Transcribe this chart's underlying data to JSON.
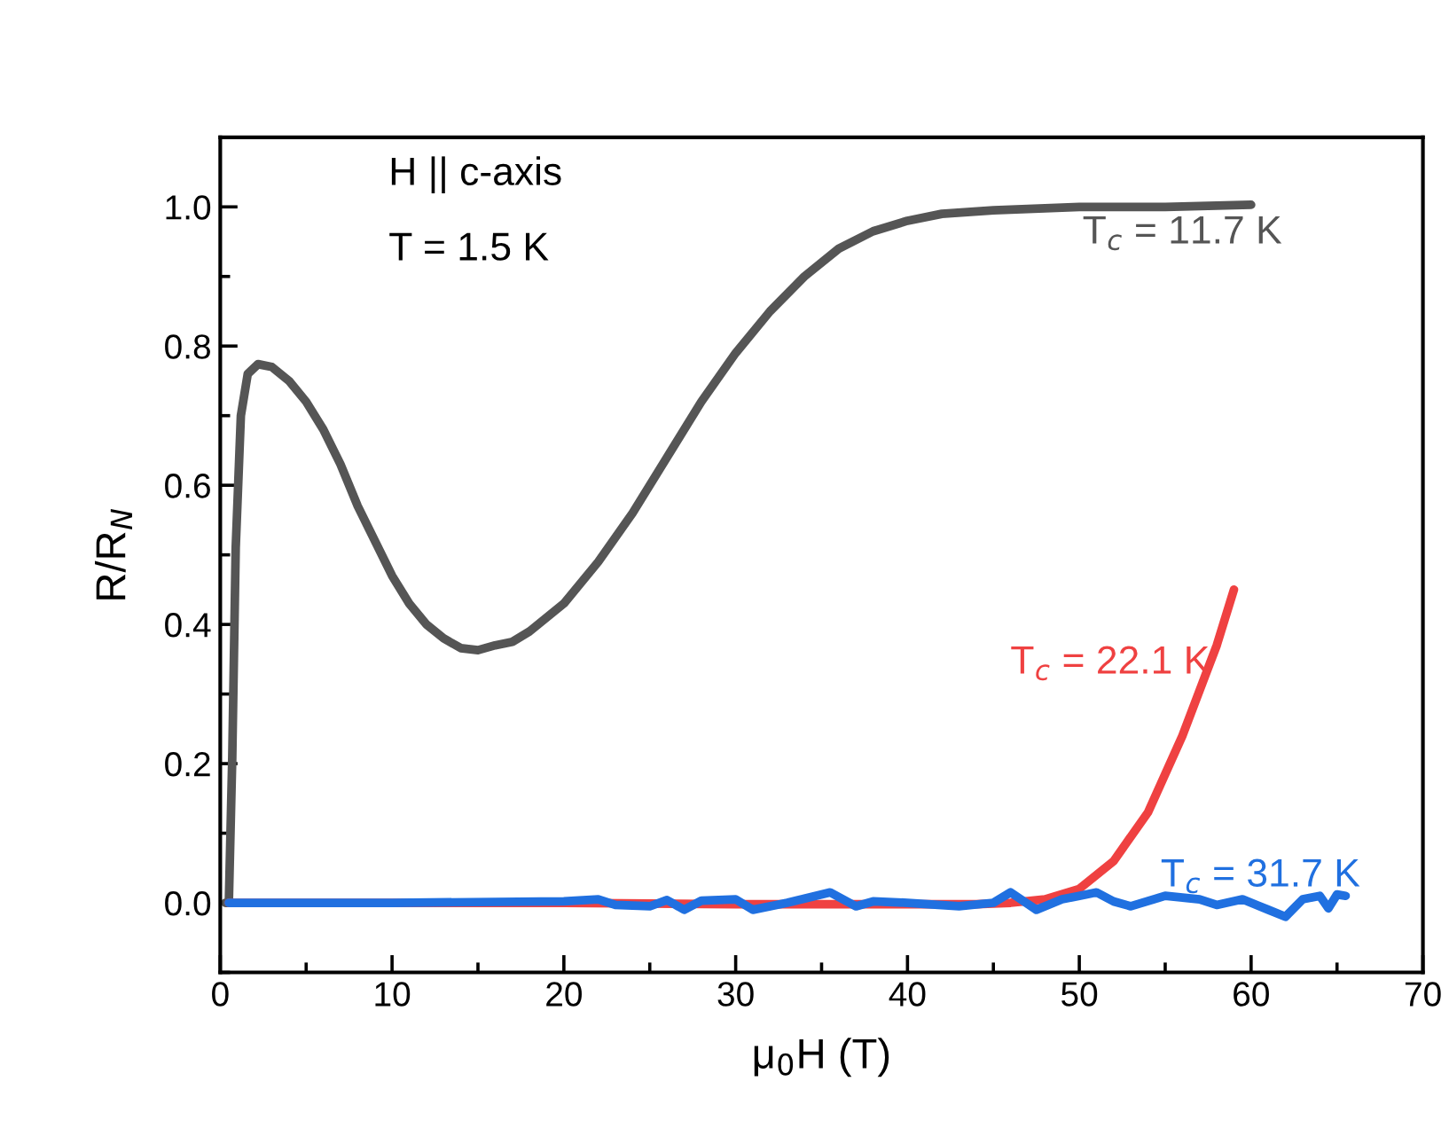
{
  "chart_data": {
    "type": "line",
    "xlabel": "μ$_{0}$H (T)",
    "ylabel": "R/R$_{N}$",
    "annotations": [
      "H || c-axis",
      "T = 1.5 K"
    ],
    "xlim": [
      0,
      70
    ],
    "xticks": [
      0,
      10,
      20,
      30,
      40,
      50,
      60,
      70
    ],
    "ylim": [
      -0.1,
      1.1
    ],
    "yticks": [
      {
        "value": 0,
        "label": "0.0"
      },
      0.2,
      0.4,
      0.6,
      0.8,
      {
        "value": 1,
        "label": "1.0"
      }
    ],
    "grid": false,
    "legend": false,
    "marker": "none",
    "line_style": "solid",
    "series": [
      {
        "name": "T$_{c}$ = 11.7 K",
        "color": "#555555",
        "x": [
          0.3,
          0.5,
          0.7,
          0.9,
          1.2,
          1.6,
          2.2,
          3,
          4,
          5,
          6,
          7,
          8,
          9,
          10,
          11,
          12,
          13,
          14,
          15,
          16,
          17,
          18,
          20,
          22,
          24,
          26,
          28,
          30,
          32,
          34,
          36,
          38,
          40,
          42,
          45,
          50,
          55,
          60
        ],
        "values": [
          0,
          0,
          0.21,
          0.51,
          0.7,
          0.76,
          0.774,
          0.77,
          0.75,
          0.72,
          0.68,
          0.63,
          0.57,
          0.52,
          0.47,
          0.43,
          0.4,
          0.38,
          0.366,
          0.363,
          0.37,
          0.375,
          0.39,
          0.43,
          0.49,
          0.56,
          0.64,
          0.72,
          0.79,
          0.85,
          0.9,
          0.94,
          0.965,
          0.98,
          0.99,
          0.995,
          1.0,
          1.0,
          1.003
        ]
      },
      {
        "name": "T$_{c}$ = 22.1 K",
        "color": "#ef4141",
        "x": [
          0.5,
          10,
          20,
          30,
          40,
          44,
          46,
          48,
          50,
          52,
          54,
          56,
          58,
          59
        ],
        "values": [
          0,
          0,
          0,
          -0.002,
          -0.002,
          -0.002,
          0,
          0.005,
          0.02,
          0.06,
          0.13,
          0.24,
          0.37,
          0.45
        ]
      },
      {
        "name": "T$_{c}$ = 31.7 K",
        "color": "#2070e0",
        "x": [
          0.5,
          10,
          20,
          22,
          23,
          25,
          26,
          27,
          28,
          30,
          31,
          33,
          35.5,
          37,
          38,
          40,
          43,
          45,
          46,
          47.5,
          49,
          50,
          51,
          52,
          53,
          55,
          57,
          58,
          59.5,
          61,
          62,
          63,
          64,
          64.5,
          65,
          65.5
        ],
        "values": [
          0,
          0,
          0.002,
          0.005,
          -0.003,
          -0.005,
          0.004,
          -0.01,
          0.003,
          0.005,
          -0.01,
          0,
          0.015,
          -0.005,
          0.002,
          0,
          -0.005,
          0,
          0.015,
          -0.01,
          0.005,
          0.01,
          0.015,
          0.002,
          -0.005,
          0.01,
          0.005,
          -0.003,
          0.005,
          -0.01,
          -0.02,
          0.005,
          0.01,
          -0.008,
          0.012,
          0.01
        ]
      }
    ]
  }
}
